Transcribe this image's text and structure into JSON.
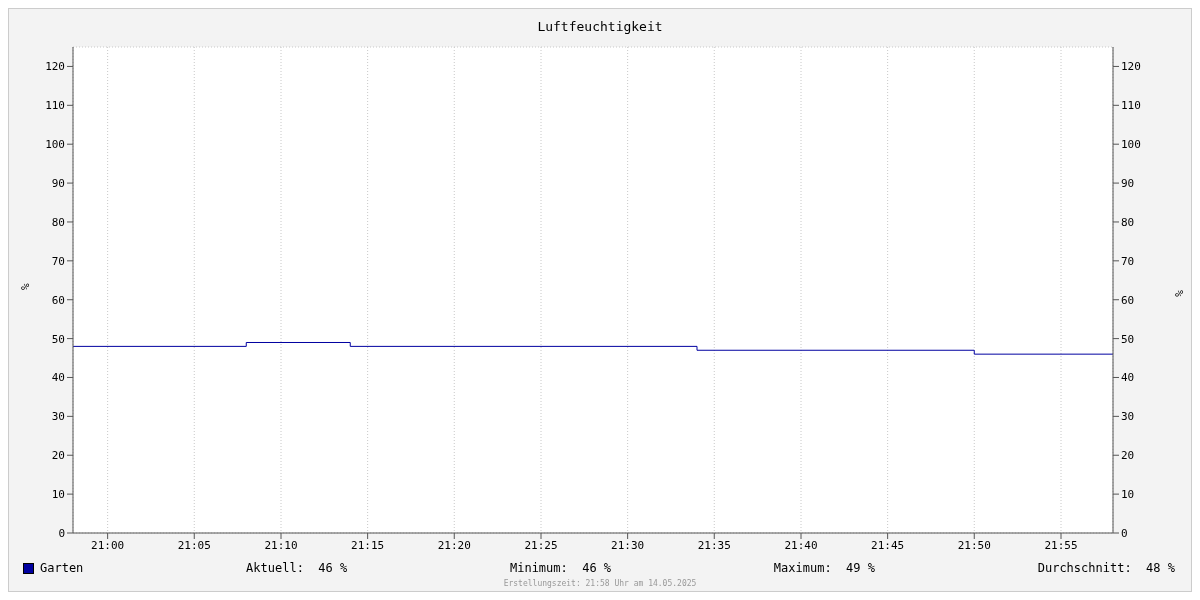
{
  "chart_data": {
    "type": "step",
    "title": "Luftfeuchtigkeit",
    "ylabel": "%",
    "y2label": "%",
    "x": [
      20.9667,
      21.1333,
      21.2333,
      21.5667,
      21.8333,
      21.9667
    ],
    "series": [
      {
        "name": "Garten",
        "color": "#0000a0",
        "values": [
          48,
          49,
          48,
          47,
          46,
          46
        ]
      }
    ],
    "xlim": [
      20.9667,
      21.9667
    ],
    "xticks": [
      {
        "value": 21,
        "label": "21:00"
      },
      {
        "value": 21.0833,
        "label": "21:05"
      },
      {
        "value": 21.1667,
        "label": "21:10"
      },
      {
        "value": 21.25,
        "label": "21:15"
      },
      {
        "value": 21.3333,
        "label": "21:20"
      },
      {
        "value": 21.4167,
        "label": "21:25"
      },
      {
        "value": 21.5,
        "label": "21:30"
      },
      {
        "value": 21.5833,
        "label": "21:35"
      },
      {
        "value": 21.6667,
        "label": "21:40"
      },
      {
        "value": 21.75,
        "label": "21:45"
      },
      {
        "value": 21.8333,
        "label": "21:50"
      },
      {
        "value": 21.9167,
        "label": "21:55"
      }
    ],
    "ylim": [
      0,
      125
    ],
    "yticks": [
      0,
      10,
      20,
      30,
      40,
      50,
      60,
      70,
      80,
      90,
      100,
      110,
      120
    ],
    "y2lim": [
      0,
      125
    ],
    "y2ticks": [
      0,
      10,
      20,
      30,
      40,
      50,
      60,
      70,
      80,
      90,
      100,
      110,
      120
    ],
    "grid": true,
    "legend": "bottom",
    "marker": "none",
    "line_style": "solid",
    "annotations": [
      "Aktuell:  46 %",
      "Minimum:  46 %",
      "Maximum:  49 %",
      "Durchschnitt:  48 %",
      "Erstellungszeit: 21:58 Uhr am 14.05.2025"
    ]
  }
}
